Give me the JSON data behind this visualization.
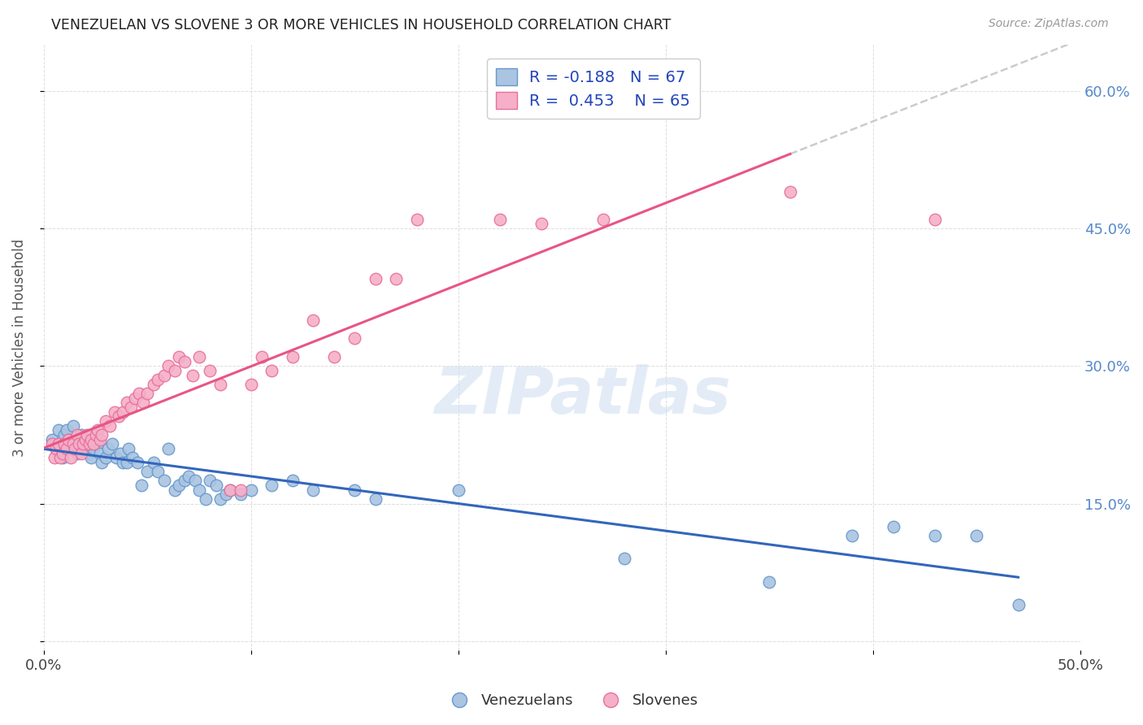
{
  "title": "VENEZUELAN VS SLOVENE 3 OR MORE VEHICLES IN HOUSEHOLD CORRELATION CHART",
  "source": "Source: ZipAtlas.com",
  "ylabel": "3 or more Vehicles in Household",
  "watermark": "ZIPatlas",
  "xlim": [
    0.0,
    0.5
  ],
  "ylim": [
    -0.01,
    0.65
  ],
  "yticks": [
    0.0,
    0.15,
    0.3,
    0.45,
    0.6
  ],
  "ytick_labels_right": [
    "",
    "15.0%",
    "30.0%",
    "45.0%",
    "60.0%"
  ],
  "xticks": [
    0.0,
    0.1,
    0.2,
    0.3,
    0.4,
    0.5
  ],
  "xtick_labels": [
    "0.0%",
    "",
    "",
    "",
    "",
    "50.0%"
  ],
  "venezuelan_color": "#aac4e2",
  "venezuelan_edge": "#6699cc",
  "slovene_color": "#f5afc8",
  "slovene_edge": "#e8709a",
  "venezuelan_line_color": "#3366bb",
  "slovene_line_color": "#e85585",
  "dash_line_color": "#cccccc",
  "R_venezuelan": -0.188,
  "N_venezuelan": 67,
  "R_slovene": 0.453,
  "N_slovene": 65,
  "venezuelan_x": [
    0.004,
    0.006,
    0.007,
    0.008,
    0.009,
    0.01,
    0.011,
    0.012,
    0.013,
    0.014,
    0.015,
    0.016,
    0.017,
    0.018,
    0.019,
    0.02,
    0.021,
    0.022,
    0.023,
    0.024,
    0.025,
    0.026,
    0.027,
    0.028,
    0.03,
    0.031,
    0.033,
    0.035,
    0.037,
    0.038,
    0.04,
    0.041,
    0.043,
    0.045,
    0.047,
    0.05,
    0.053,
    0.055,
    0.058,
    0.06,
    0.063,
    0.065,
    0.068,
    0.07,
    0.073,
    0.075,
    0.078,
    0.08,
    0.083,
    0.085,
    0.088,
    0.09,
    0.095,
    0.1,
    0.11,
    0.12,
    0.13,
    0.15,
    0.16,
    0.2,
    0.28,
    0.35,
    0.39,
    0.41,
    0.43,
    0.45,
    0.47
  ],
  "venezuelan_y": [
    0.22,
    0.21,
    0.23,
    0.215,
    0.2,
    0.225,
    0.23,
    0.22,
    0.21,
    0.235,
    0.215,
    0.205,
    0.22,
    0.225,
    0.21,
    0.215,
    0.22,
    0.205,
    0.2,
    0.21,
    0.22,
    0.215,
    0.205,
    0.195,
    0.2,
    0.21,
    0.215,
    0.2,
    0.205,
    0.195,
    0.195,
    0.21,
    0.2,
    0.195,
    0.17,
    0.185,
    0.195,
    0.185,
    0.175,
    0.21,
    0.165,
    0.17,
    0.175,
    0.18,
    0.175,
    0.165,
    0.155,
    0.175,
    0.17,
    0.155,
    0.16,
    0.165,
    0.16,
    0.165,
    0.17,
    0.175,
    0.165,
    0.165,
    0.155,
    0.165,
    0.09,
    0.065,
    0.115,
    0.125,
    0.115,
    0.115,
    0.04
  ],
  "slovene_x": [
    0.004,
    0.005,
    0.006,
    0.007,
    0.008,
    0.009,
    0.01,
    0.011,
    0.012,
    0.013,
    0.014,
    0.015,
    0.016,
    0.017,
    0.018,
    0.019,
    0.02,
    0.021,
    0.022,
    0.023,
    0.024,
    0.025,
    0.026,
    0.027,
    0.028,
    0.03,
    0.032,
    0.034,
    0.036,
    0.038,
    0.04,
    0.042,
    0.044,
    0.046,
    0.048,
    0.05,
    0.053,
    0.055,
    0.058,
    0.06,
    0.063,
    0.065,
    0.068,
    0.072,
    0.075,
    0.08,
    0.085,
    0.09,
    0.095,
    0.1,
    0.105,
    0.11,
    0.12,
    0.13,
    0.14,
    0.15,
    0.16,
    0.17,
    0.18,
    0.22,
    0.24,
    0.27,
    0.31,
    0.36,
    0.43
  ],
  "slovene_y": [
    0.215,
    0.2,
    0.21,
    0.215,
    0.2,
    0.205,
    0.215,
    0.21,
    0.22,
    0.2,
    0.215,
    0.21,
    0.225,
    0.215,
    0.205,
    0.215,
    0.22,
    0.225,
    0.215,
    0.22,
    0.215,
    0.225,
    0.23,
    0.22,
    0.225,
    0.24,
    0.235,
    0.25,
    0.245,
    0.25,
    0.26,
    0.255,
    0.265,
    0.27,
    0.26,
    0.27,
    0.28,
    0.285,
    0.29,
    0.3,
    0.295,
    0.31,
    0.305,
    0.29,
    0.31,
    0.295,
    0.28,
    0.165,
    0.165,
    0.28,
    0.31,
    0.295,
    0.31,
    0.35,
    0.31,
    0.33,
    0.395,
    0.395,
    0.46,
    0.46,
    0.455,
    0.46,
    0.6,
    0.49,
    0.46
  ]
}
